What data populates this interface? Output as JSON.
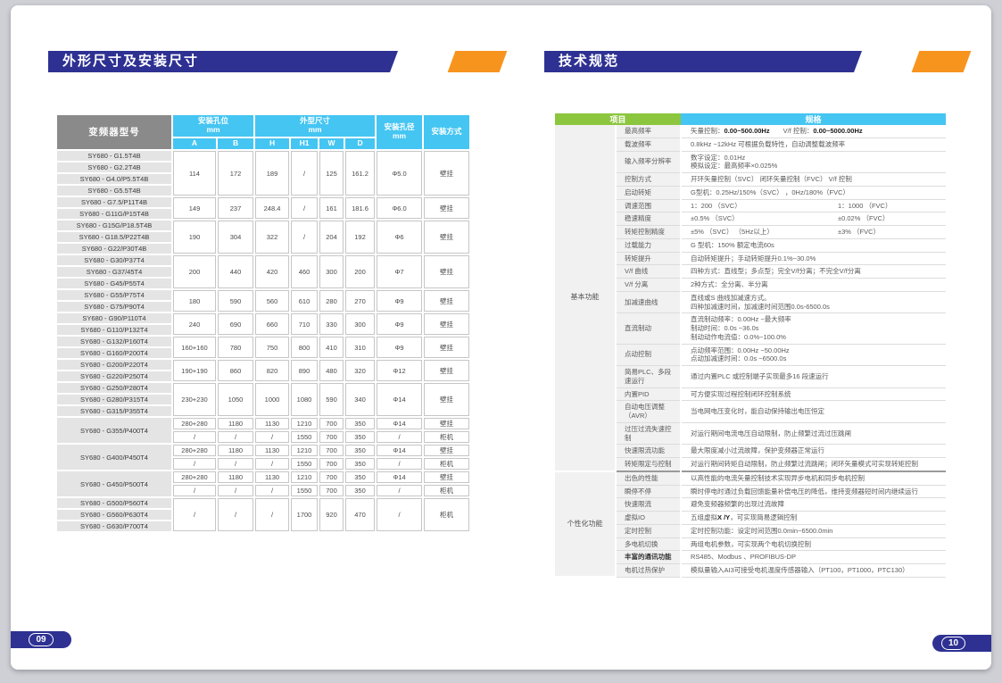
{
  "left": {
    "title": "外形尺寸及安装尺寸",
    "page_number": "09",
    "table": {
      "model_header": "变频器型号",
      "mount_holes_header": "安装孔位\nmm",
      "dims_header": "外型尺寸\nmm",
      "hole_dia_header": "安装孔径\nmm",
      "mount_type_header": "安装方式",
      "sub_cols": [
        "A",
        "B",
        "H",
        "H1",
        "W",
        "D"
      ],
      "groups": [
        {
          "models": [
            "SY680 - G1.5T4B",
            "SY680 - G2.2T4B",
            "SY680 - G4.0/P5.5T4B",
            "SY680 - G5.5T4B"
          ],
          "rows": [
            [
              "114",
              "172",
              "189",
              "/",
              "125",
              "161.2",
              "Φ5.0",
              "壁挂"
            ]
          ]
        },
        {
          "models": [
            "SY680 - G7.5/P11T4B",
            "SY680 - G11G/P15T4B"
          ],
          "rows": [
            [
              "149",
              "237",
              "248.4",
              "/",
              "161",
              "181.6",
              "Φ6.0",
              "壁挂"
            ]
          ]
        },
        {
          "models": [
            "SY680 - G15G/P18.5T4B",
            "SY680 - G18.5/P22T4B",
            "SY680 - G22/P30T4B"
          ],
          "rows": [
            [
              "190",
              "304",
              "322",
              "/",
              "204",
              "192",
              "Φ6",
              "壁挂"
            ]
          ]
        },
        {
          "models": [
            "SY680 - G30/P37T4",
            "SY680 - G37/45T4",
            "SY680 - G45/P55T4"
          ],
          "rows": [
            [
              "200",
              "440",
              "420",
              "460",
              "300",
              "200",
              "Φ7",
              "壁挂"
            ]
          ]
        },
        {
          "models": [
            "SY680 - G55/P75T4",
            "SY680 - G75/P90T4"
          ],
          "rows": [
            [
              "180",
              "590",
              "560",
              "610",
              "280",
              "270",
              "Φ9",
              "壁挂"
            ]
          ]
        },
        {
          "models": [
            "SY680 - G90/P110T4",
            "SY680 - G110/P132T4"
          ],
          "rows": [
            [
              "240",
              "690",
              "660",
              "710",
              "330",
              "300",
              "Φ9",
              "壁挂"
            ]
          ]
        },
        {
          "models": [
            "SY680 - G132/P160T4",
            "SY680 - G160/P200T4"
          ],
          "rows": [
            [
              "160+160",
              "780",
              "750",
              "800",
              "410",
              "310",
              "Φ9",
              "壁挂"
            ]
          ]
        },
        {
          "models": [
            "SY680 - G200/P220T4",
            "SY680 - G220/P250T4"
          ],
          "rows": [
            [
              "190+190",
              "860",
              "820",
              "890",
              "480",
              "320",
              "Φ12",
              "壁挂"
            ]
          ]
        },
        {
          "models": [
            "SY680 - G250/P280T4",
            "SY680 - G280/P315T4",
            "SY680 - G315/P355T4"
          ],
          "rows": [
            [
              "230+230",
              "1050",
              "1000",
              "1080",
              "590",
              "340",
              "Φ14",
              "壁挂"
            ]
          ]
        },
        {
          "models": [
            "SY680 - G355/P400T4"
          ],
          "rows": [
            [
              "280+280",
              "1180",
              "1130",
              "1210",
              "700",
              "350",
              "Φ14",
              "壁挂"
            ],
            [
              "/",
              "/",
              "/",
              "1550",
              "700",
              "350",
              "/",
              "柜机"
            ]
          ]
        },
        {
          "models": [
            "SY680 - G400/P450T4"
          ],
          "rows": [
            [
              "280+280",
              "1180",
              "1130",
              "1210",
              "700",
              "350",
              "Φ14",
              "壁挂"
            ],
            [
              "/",
              "/",
              "/",
              "1550",
              "700",
              "350",
              "/",
              "柜机"
            ]
          ]
        },
        {
          "models": [
            "SY680 - G450/P500T4"
          ],
          "rows": [
            [
              "280+280",
              "1180",
              "1130",
              "1210",
              "700",
              "350",
              "Φ14",
              "壁挂"
            ],
            [
              "/",
              "/",
              "/",
              "1550",
              "700",
              "350",
              "/",
              "柜机"
            ]
          ]
        },
        {
          "models": [
            "SY680 - G500/P560T4",
            "SY680 - G560/P630T4",
            "SY680 - G630/P700T4"
          ],
          "rows": [
            [
              "/",
              "/",
              "/",
              "1700",
              "920",
              "470",
              "/",
              "柜机"
            ]
          ]
        }
      ]
    }
  },
  "right": {
    "title": "技术规范",
    "page_number": "10",
    "table": {
      "item_header": "项目",
      "spec_header": "规格",
      "sections": [
        {
          "category": "基本功能",
          "rows": [
            {
              "item": "最高频率",
              "value": "矢量控制：**0.00~500.00Hz**　　V/f 控制：**0.00~5000.00Hz**"
            },
            {
              "item": "载波频率",
              "value": "0.8kHz ~12kHz 可根据负载特性，自动调整载波频率"
            },
            {
              "item": "输入频率分辨率",
              "value": "数字设定：0.01Hz\n模拟设定：最高频率×0.025%"
            },
            {
              "item": "控制方式",
              "value": "开环矢量控制（SVC）  闭环矢量控制（FVC）  V/f 控制"
            },
            {
              "item": "启动转矩",
              "value": "G型机：0.25Hz/150%（SVC） ，0Hz/180%（FVC）"
            },
            {
              "item": "调速范围",
              "value": "1：200 （SVC）",
              "value2": "1：1000 （FVC）"
            },
            {
              "item": "稳速精度",
              "value": "±0.5% （SVC）",
              "value2": "±0.02% （FVC）"
            },
            {
              "item": "转矩控制精度",
              "value": "±5% （SVC） （5Hz以上）",
              "value2": "±3% （FVC）"
            },
            {
              "item": "过载能力",
              "value": "G 型机：150% 额定电流60s"
            },
            {
              "item": "转矩提升",
              "value": "自动转矩提升；手动转矩提升0.1%~30.0%"
            },
            {
              "item": "V/f 曲线",
              "value": "四种方式：直线型；多点型；完全V/f分离；不完全V/f分离"
            },
            {
              "item": "V/f 分离",
              "value": "2种方式：全分离、半分离"
            },
            {
              "item": "加减速曲线",
              "value": "直线或S 曲线加减速方式。\n四种加减速时间，加减速时间范围0.0s-6500.0s"
            },
            {
              "item": "直流制动",
              "value": "直流制动频率：0.00Hz ~最大频率\n制动时间：0.0s ~36.0s\n制动动作电流值：0.0%~100.0%"
            },
            {
              "item": "点动控制",
              "value": "点动频率范围：0.00Hz ~50.00Hz\n点动加减速时间：0.0s ~6500.0s"
            },
            {
              "item": "简易PLC、多段速运行",
              "value": "通过内置PLC 或控制端子实现最多16 段速运行"
            },
            {
              "item": "内置PID",
              "value": "可方便实现过程控制闭环控制系统"
            },
            {
              "item": "自动电压调整（AVR）",
              "value": "当电网电压变化时，能自动保持输出电压恒定"
            },
            {
              "item": "过压过流失速控制",
              "value": "对运行期间电流电压自动限制，防止频繁过流过压跳闸"
            },
            {
              "item": "快速限流功能",
              "value": "最大限度减小过流故障，保护变频器正常运行"
            },
            {
              "item": "转矩限定与控制",
              "value": "对运行期间转矩自动限制，防止频繁过流跳闸；闭环矢量模式可实现转矩控制"
            }
          ]
        },
        {
          "category": "个性化功能",
          "rows": [
            {
              "item": "出色的性能",
              "value": "以高性能的电流矢量控制技术实现异步电机和同步电机控制"
            },
            {
              "item": "瞬停不停",
              "value": "瞬时停电时通过负载回馈能量补偿电压的降低，维持变频器短时间内继续运行"
            },
            {
              "item": "快速限流",
              "value": "避免变频器频繁的出现过流故障"
            },
            {
              "item": "虚拟IO",
              "value": "五组虚拟**X /Y**，可实现简易逻辑控制"
            },
            {
              "item": "定时控制",
              "value": "定时控制功能：设定时间范围0.0min~6500.0min"
            },
            {
              "item": "多电机切换",
              "value": "两组电机参数，可实现两个电机切换控制"
            },
            {
              "item": "丰富的通讯功能",
              "item_bold": true,
              "value": "RS485、Modbus 、PROFIBUS-DP"
            },
            {
              "item": "电机过热保护",
              "value": "模拟量输入AI3可接受电机温度传感器输入（PT100，PT1000，PTC130）"
            }
          ]
        }
      ]
    }
  },
  "colors": {
    "indigo": "#2e3192",
    "orange": "#f7941e",
    "cyan_header": "#45c5f2",
    "green_header": "#8cc63e",
    "gray_header": "#8a8a8a"
  }
}
